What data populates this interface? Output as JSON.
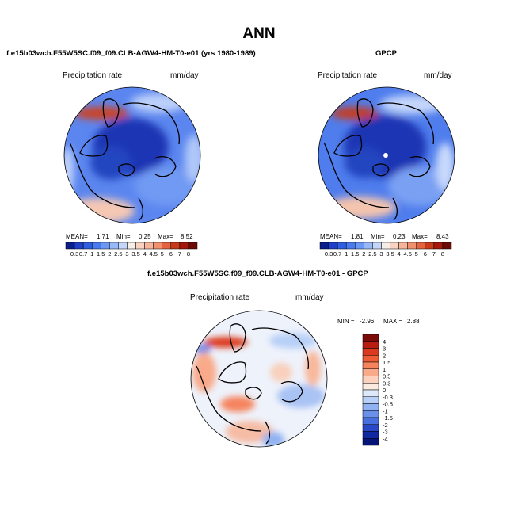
{
  "figure": {
    "title": "ANN"
  },
  "chart_data": [
    {
      "type": "heatmap",
      "title": "f.e15b03wch.F55W5SC.f09_f09.CLB-AGW4-HM-T0-e01 (yrs 1980-1989)",
      "variable": "Precipitation rate",
      "units": "mm/day",
      "projection": "north polar stereographic",
      "stats": {
        "mean_label": "MEAN=",
        "mean": "1.71",
        "min_label": "Min=",
        "min": "0.25",
        "max_label": "Max=",
        "max": "8.52"
      },
      "colorbar": {
        "levels": [
          "0.3",
          "0.7",
          "1",
          "1.5",
          "2",
          "2.5",
          "3",
          "3.5",
          "4",
          "4.5",
          "5",
          "6",
          "7",
          "8"
        ],
        "colors": [
          "#0a1e8c",
          "#1f3fc8",
          "#2f5fe0",
          "#4a7af0",
          "#6c98f5",
          "#98b8f8",
          "#c4d6fb",
          "#f6eee7",
          "#f8d3c1",
          "#f6b49a",
          "#f1906f",
          "#e4633f",
          "#c83a1c",
          "#a4190b",
          "#6e0a05"
        ]
      }
    },
    {
      "type": "heatmap",
      "title": "GPCP",
      "variable": "Precipitation rate",
      "units": "mm/day",
      "projection": "north polar stereographic",
      "stats": {
        "mean_label": "MEAN=",
        "mean": "1.81",
        "min_label": "Min=",
        "min": "0.23",
        "max_label": "Max=",
        "max": "8.43"
      },
      "colorbar": {
        "levels": [
          "0.3",
          "0.7",
          "1",
          "1.5",
          "2",
          "2.5",
          "3",
          "3.5",
          "4",
          "4.5",
          "5",
          "6",
          "7",
          "8"
        ],
        "colors": [
          "#0a1e8c",
          "#1f3fc8",
          "#2f5fe0",
          "#4a7af0",
          "#6c98f5",
          "#98b8f8",
          "#c4d6fb",
          "#f6eee7",
          "#f8d3c1",
          "#f6b49a",
          "#f1906f",
          "#e4633f",
          "#c83a1c",
          "#a4190b",
          "#6e0a05"
        ]
      }
    },
    {
      "type": "heatmap",
      "title": "f.e15b03wch.F55W5SC.f09_f09.CLB-AGW4-HM-T0-e01 - GPCP",
      "variable": "Precipitation rate",
      "units": "mm/day",
      "projection": "north polar stereographic",
      "stats": {
        "min_label": "MIN =",
        "min": "-2.96",
        "max_label": "MAX =",
        "max": "2.88"
      },
      "colorbar": {
        "levels": [
          "4",
          "3",
          "2",
          "1.5",
          "1",
          "0.5",
          "0.3",
          "0",
          "-0.3",
          "-0.5",
          "-1",
          "-1.5",
          "-2",
          "-3",
          "-4"
        ],
        "colors": [
          "#7a0b06",
          "#b81e10",
          "#dc3a1e",
          "#ee5d35",
          "#f5845e",
          "#f8aa8a",
          "#fbd0bc",
          "#fbeae0",
          "#dde9fa",
          "#b8d0f7",
          "#90b2f2",
          "#6a90ea",
          "#476fe0",
          "#2848c8",
          "#1228a0",
          "#061478"
        ]
      }
    }
  ]
}
